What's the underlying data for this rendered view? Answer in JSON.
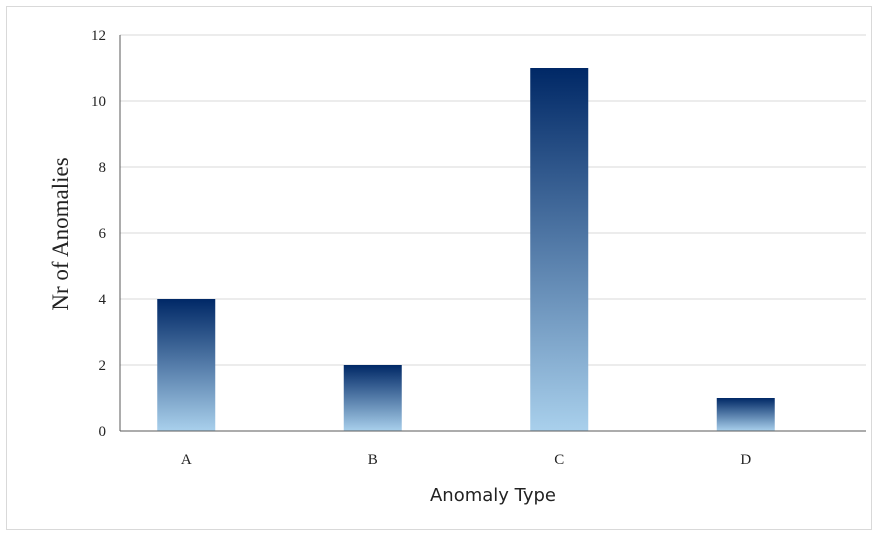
{
  "chart_data": {
    "type": "bar",
    "categories": [
      "A",
      "B",
      "C",
      "D"
    ],
    "values": [
      4,
      2,
      11,
      1
    ],
    "xlabel": "Anomaly Type",
    "ylabel": "Nr of Anomalies",
    "ylim": [
      0,
      12
    ],
    "yticks": [
      0,
      2,
      4,
      6,
      8,
      10,
      12
    ],
    "grid": true,
    "legend": "none",
    "colors": {
      "bar_top": "#002866",
      "bar_bottom": "#a9d0ec",
      "grid": "#d9d9d9",
      "axis": "#595959",
      "border": "#d9d9d9"
    }
  }
}
